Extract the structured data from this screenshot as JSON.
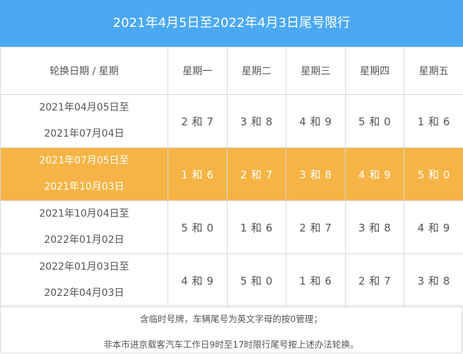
{
  "title": "2021年4月5日至2022年4月3日尾号限行",
  "header": {
    "first_col": "轮换日期 / 星期",
    "days": [
      "星期一",
      "星期二",
      "星期三",
      "星期四",
      "星期五"
    ]
  },
  "rows": [
    {
      "date_start": "2021年04月05日至",
      "date_end": "2021年07月04日",
      "values": [
        "2 和 7",
        "3 和 8",
        "4 和 9",
        "5 和 0",
        "1 和 6"
      ],
      "highlighted": false
    },
    {
      "date_start": "2021年07月05日至",
      "date_end": "2021年10月03日",
      "values": [
        "1 和 6",
        "2 和 7",
        "3 和 8",
        "4 和 9",
        "5 和 0"
      ],
      "highlighted": true
    },
    {
      "date_start": "2021年10月04日至",
      "date_end": "2022年01月02日",
      "values": [
        "5 和 0",
        "1 和 6",
        "2 和 7",
        "3 和 8",
        "4 和 9"
      ],
      "highlighted": false
    },
    {
      "date_start": "2022年01月03日至",
      "date_end": "2022年04月03日",
      "values": [
        "4 和 9",
        "5 和 0",
        "1 和 6",
        "2 和 7",
        "3 和 8"
      ],
      "highlighted": false
    }
  ],
  "notes": {
    "line1": "含临时号牌，车辆尾号为英文字母的按0管理；",
    "line2": "非本市进京载客汽车工作日9时至17时限行尾号按上述办法轮换。"
  },
  "colors": {
    "title_bg": "#4aa9f2",
    "highlight_bg": "#f5b445",
    "border": "#d9d9d9",
    "text": "#555555"
  }
}
